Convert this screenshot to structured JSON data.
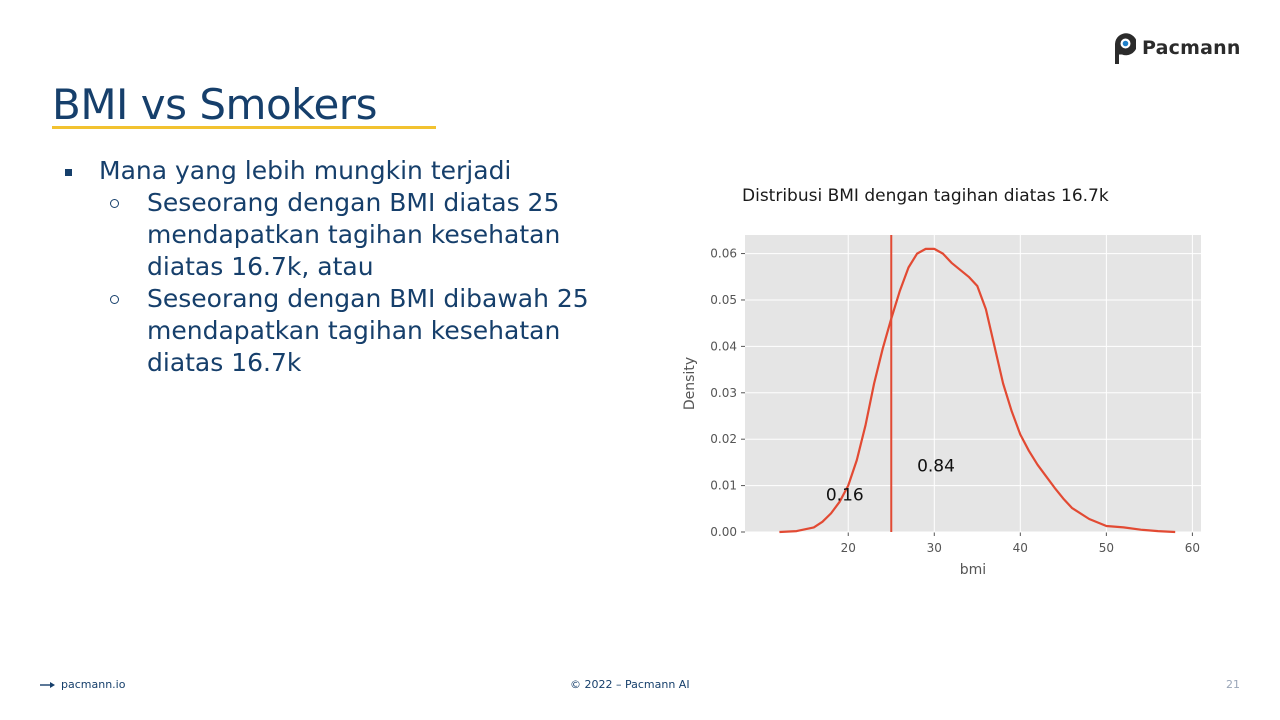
{
  "brand": {
    "name": "Pacmann"
  },
  "slide": {
    "title": "BMI vs Smokers",
    "bullet": "Mana yang lebih mungkin terjadi",
    "sub_bullets": [
      [
        "Seseorang dengan BMI diatas 25",
        "mendapatkan tagihan kesehatan",
        "diatas 16.7k, atau"
      ],
      [
        "Seseorang dengan BMI dibawah 25",
        "mendapatkan tagihan kesehatan",
        "diatas 16.7k"
      ]
    ]
  },
  "footer": {
    "site": "pacmann.io",
    "copyright": "© 2022 – Pacmann AI",
    "page_number": "21"
  },
  "colors": {
    "title": "#163f6b",
    "underline": "#f2c230",
    "line": "#e24a33",
    "panel": "#e5e5e5",
    "grid": "#ffffff",
    "tick": "#555555"
  },
  "chart_data": {
    "type": "line",
    "title": "Distribusi BMI dengan tagihan diatas 16.7k",
    "xlabel": "bmi",
    "ylabel": "Density",
    "xlim": [
      8,
      61
    ],
    "ylim": [
      0,
      0.064
    ],
    "xticks": [
      20,
      30,
      40,
      50,
      60
    ],
    "yticks": [
      0.0,
      0.01,
      0.02,
      0.03,
      0.04,
      0.05,
      0.06
    ],
    "grid": true,
    "vline_x": 25,
    "series": [
      {
        "x": [
          12,
          14,
          16,
          17,
          18,
          19,
          20,
          21,
          22,
          23,
          24,
          25,
          26,
          27,
          28,
          29,
          30,
          31,
          32,
          33,
          34,
          35,
          36,
          37,
          38,
          39,
          40,
          41,
          42,
          43,
          44,
          45,
          46,
          48,
          50,
          52,
          54,
          56,
          58
        ],
        "y": [
          0.0,
          0.0002,
          0.001,
          0.0022,
          0.004,
          0.0065,
          0.01,
          0.0155,
          0.023,
          0.032,
          0.0395,
          0.046,
          0.052,
          0.057,
          0.06,
          0.061,
          0.061,
          0.06,
          0.058,
          0.0565,
          0.055,
          0.053,
          0.048,
          0.04,
          0.032,
          0.026,
          0.021,
          0.0175,
          0.0145,
          0.012,
          0.0095,
          0.0072,
          0.0052,
          0.0028,
          0.0013,
          0.001,
          0.0005,
          0.0002,
          0.0
        ]
      }
    ],
    "annotations": [
      {
        "text": "0.16",
        "x": 19.6,
        "y": 0.0068
      },
      {
        "text": "0.84",
        "x": 30.2,
        "y": 0.013
      }
    ]
  }
}
